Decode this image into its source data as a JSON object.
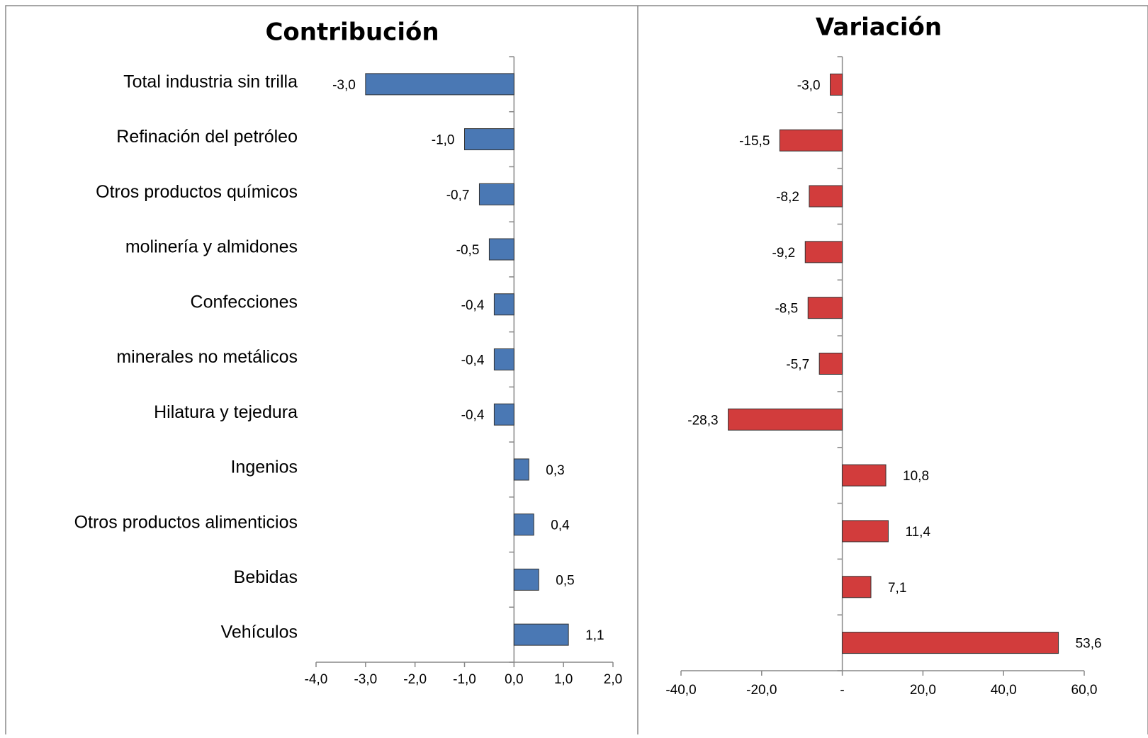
{
  "chart_data": [
    {
      "type": "bar",
      "orientation": "horizontal",
      "title": "Contribución",
      "categories": [
        "Total industria sin trilla",
        "Refinación del petróleo",
        "Otros productos químicos",
        "molinería y almidones",
        "Confecciones",
        "minerales no metálicos",
        "Hilatura y tejedura",
        "Ingenios",
        "Otros productos alimenticios",
        "Bebidas",
        "Vehículos"
      ],
      "values": [
        -3.0,
        -1.0,
        -0.7,
        -0.5,
        -0.4,
        -0.4,
        -0.4,
        0.3,
        0.4,
        0.5,
        1.1
      ],
      "value_labels": [
        "-3,0",
        "-1,0",
        "-0,7",
        "-0,5",
        "-0,4",
        "-0,4",
        "-0,4",
        "0,3",
        "0,4",
        "0,5",
        "1,1"
      ],
      "color": "#4a78b4",
      "xlim": [
        -4,
        2
      ],
      "xticks": [
        {
          "value": -4,
          "label": "-4,0"
        },
        {
          "value": -3,
          "label": "-3,0"
        },
        {
          "value": -2,
          "label": "-2,0"
        },
        {
          "value": -1,
          "label": "-1,0"
        },
        {
          "value": 0,
          "label": "0,0"
        },
        {
          "value": 1,
          "label": "1,0"
        },
        {
          "value": 2,
          "label": "2,0"
        }
      ]
    },
    {
      "type": "bar",
      "orientation": "horizontal",
      "title": "Variación",
      "values": [
        -3.0,
        -15.5,
        -8.2,
        -9.2,
        -8.5,
        -5.7,
        -28.3,
        10.8,
        11.4,
        7.1,
        53.6
      ],
      "value_labels": [
        "-3,0",
        "-15,5",
        "-8,2",
        "-9,2",
        "-8,5",
        "-5,7",
        "-28,3",
        "10,8",
        "11,4",
        "7,1",
        "53,6"
      ],
      "color": "#d23c3c",
      "xlim": [
        -40,
        60
      ],
      "xticks": [
        {
          "value": -40,
          "label": "-40,0"
        },
        {
          "value": -20,
          "label": "-20,0"
        },
        {
          "value": 0,
          "label": "-"
        },
        {
          "value": 20,
          "label": "20,0"
        },
        {
          "value": 40,
          "label": "40,0"
        },
        {
          "value": 60,
          "label": "60,0"
        }
      ]
    }
  ]
}
